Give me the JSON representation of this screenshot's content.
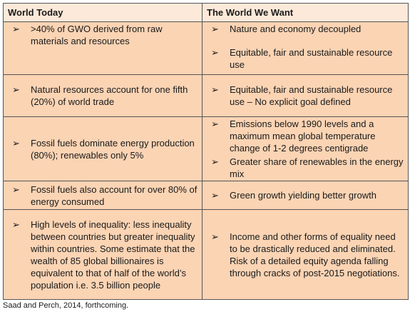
{
  "table": {
    "headers": [
      "World Today",
      "The World We Want"
    ],
    "rows": [
      [
        [
          ">40% of GWO derived from raw materials and resources"
        ],
        [
          "Nature and economy decoupled",
          "Equitable, fair and sustainable resource use"
        ]
      ],
      [
        [
          "Natural resources account for one fifth (20%) of world trade"
        ],
        [
          "Equitable, fair and sustainable resource use – No explicit goal defined"
        ]
      ],
      [
        [
          "Fossil fuels dominate energy production (80%); renewables only 5%"
        ],
        [
          "Emissions below 1990 levels and a maximum mean global temperature change of 1-2 degrees centigrade",
          "Greater share of renewables in the energy mix"
        ]
      ],
      [
        [
          "Fossil fuels also account for over 80% of energy consumed"
        ],
        [
          "Green growth yielding better growth"
        ]
      ],
      [
        [
          "High levels of inequality: less inequality between countries but greater inequality within countries. Some estimate that the wealth of 85 global billionaires is equivalent to that of half of the world’s population i.e. 3.5 billion people"
        ],
        [
          "Income and other forms of equality need to be drastically reduced and eliminated. Risk of a detailed equity agenda falling through cracks of post-2015 negotiations."
        ]
      ]
    ]
  },
  "caption": "Saad and Perch, 2014, forthcoming."
}
